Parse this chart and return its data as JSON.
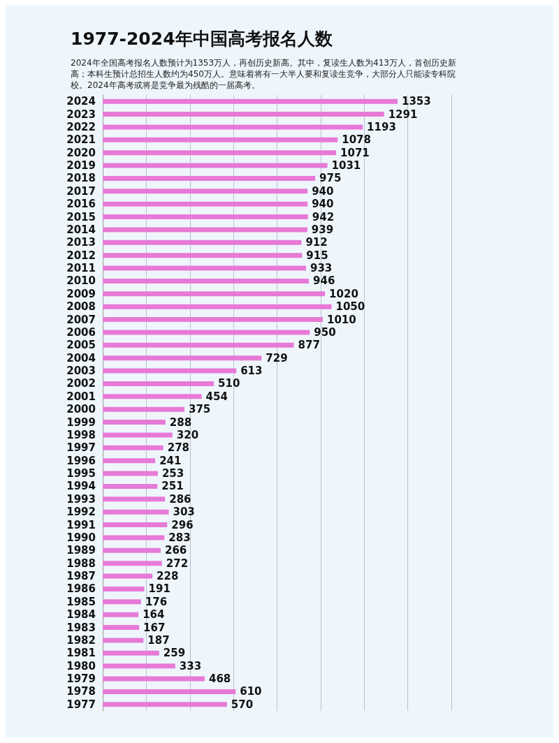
{
  "chart_data": {
    "type": "bar",
    "orientation": "horizontal",
    "title": "1977-2024年中国高考报名人数",
    "subtitle": "2024年全国高考报名人数预计为1353万人，再创历史新高。其中，复读生人数为413万人，首创历史新高；本科生预计总招生人数约为450万人。意味着将有一大半人要和复读生竞争，大部分人只能读专科院校。2024年高考或将是竞争最为残酷的一届高考。",
    "categories": [
      "2024",
      "2023",
      "2022",
      "2021",
      "2020",
      "2019",
      "2018",
      "2017",
      "2016",
      "2015",
      "2014",
      "2013",
      "2012",
      "2011",
      "2010",
      "2009",
      "2008",
      "2007",
      "2006",
      "2005",
      "2004",
      "2003",
      "2002",
      "2001",
      "2000",
      "1999",
      "1998",
      "1997",
      "1996",
      "1995",
      "1994",
      "1993",
      "1992",
      "1991",
      "1990",
      "1989",
      "1988",
      "1987",
      "1986",
      "1985",
      "1984",
      "1983",
      "1982",
      "1981",
      "1980",
      "1979",
      "1978",
      "1977"
    ],
    "values": [
      1353,
      1291,
      1193,
      1078,
      1071,
      1031,
      975,
      940,
      940,
      942,
      939,
      912,
      915,
      933,
      946,
      1020,
      1050,
      1010,
      950,
      877,
      729,
      613,
      510,
      454,
      375,
      288,
      320,
      278,
      241,
      253,
      251,
      286,
      303,
      296,
      283,
      266,
      272,
      228,
      191,
      176,
      164,
      167,
      187,
      259,
      333,
      468,
      610,
      570
    ],
    "color": "#e77ad6",
    "xlim": [
      0,
      1600
    ],
    "xticks": [
      {
        "value": 0,
        "label": null
      },
      {
        "value": 200,
        "label": null
      },
      {
        "value": 400,
        "label": null
      },
      {
        "value": 600,
        "label": null
      },
      {
        "value": 800,
        "label": null
      },
      {
        "value": 1000,
        "label": null
      },
      {
        "value": 1200,
        "label": null
      },
      {
        "value": 1400,
        "label": null
      },
      {
        "value": 1600,
        "label": null
      }
    ],
    "grid": "x",
    "tick_labels": "y",
    "data_labels": true
  }
}
